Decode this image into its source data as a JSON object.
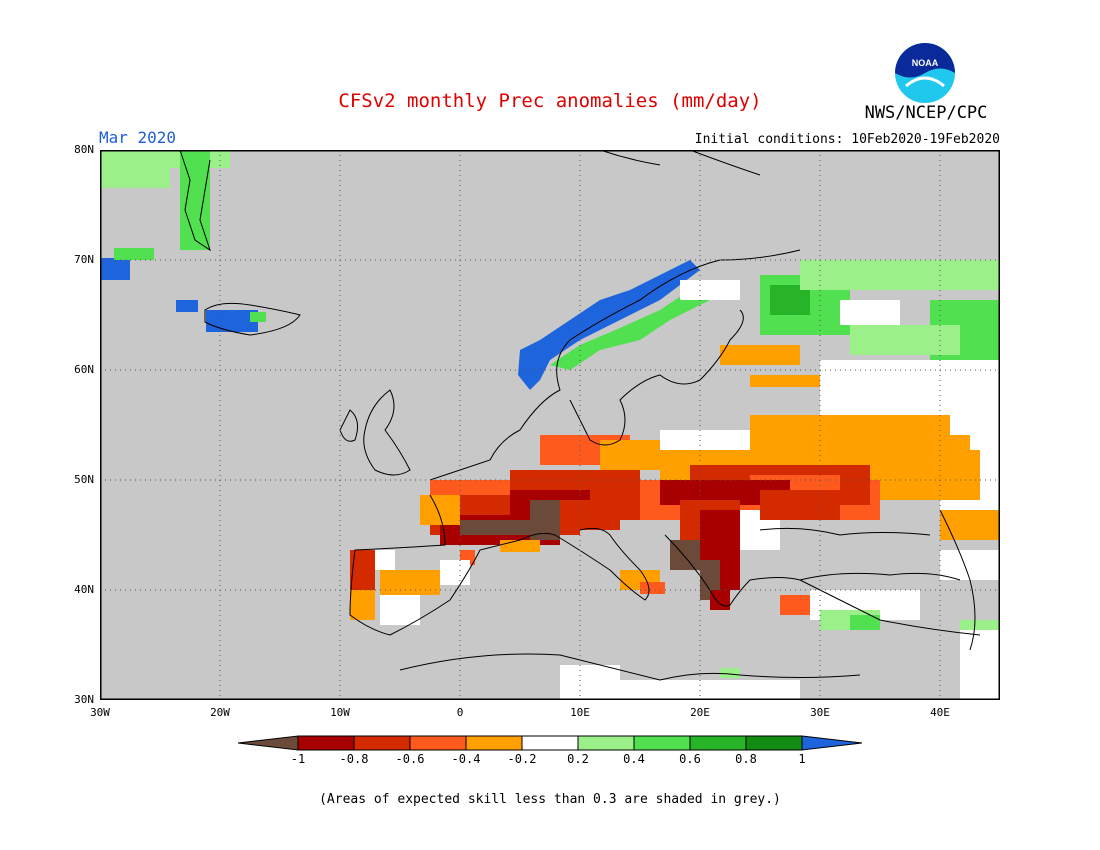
{
  "title": "CFSv2 monthly Prec anomalies (mm/day)",
  "agency": "NWS/NCEP/CPC",
  "logo_text": "NOAA",
  "month": "Mar 2020",
  "initial_conditions": "Initial conditions: 10Feb2020-19Feb2020",
  "footnote": "(Areas of expected skill less than 0.3 are shaded in grey.)",
  "lat_labels": [
    "80N",
    "70N",
    "60N",
    "50N",
    "40N",
    "30N"
  ],
  "lon_labels": [
    "30W",
    "20W",
    "10W",
    "0",
    "10E",
    "20E",
    "30E",
    "40E"
  ],
  "colorbar": {
    "labels": [
      "-1",
      "-0.8",
      "-0.6",
      "-0.4",
      "-0.2",
      "0.2",
      "0.4",
      "0.6",
      "0.8",
      "1"
    ],
    "colors": [
      "#6b4a3a",
      "#a80000",
      "#d42a00",
      "#ff5a1e",
      "#ffa000",
      "#ffffff",
      "#9cf08a",
      "#50e050",
      "#28b428",
      "#138c13",
      "#1e64dc"
    ]
  },
  "colors": {
    "background_mask": "#c8c8c8",
    "title": "#e00000",
    "month": "#1f5fd6"
  },
  "map_extent": {
    "lon": [
      -30,
      45
    ],
    "lat": [
      30,
      80
    ]
  }
}
